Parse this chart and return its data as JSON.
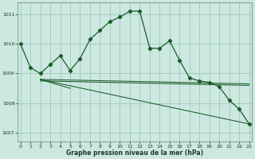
{
  "title": "Graphe pression niveau de la mer (hPa)",
  "background_color": "#cce8e0",
  "grid_color": "#88bbaa",
  "line_color": "#1a5c2a",
  "ylim": [
    1006.7,
    1011.4
  ],
  "xlim": [
    -0.3,
    23.3
  ],
  "yticks": [
    1007,
    1008,
    1009,
    1010,
    1011
  ],
  "xticks": [
    0,
    1,
    2,
    3,
    4,
    5,
    6,
    7,
    8,
    9,
    10,
    11,
    12,
    13,
    14,
    15,
    16,
    17,
    18,
    19,
    20,
    21,
    22,
    23
  ],
  "series_main": {
    "x": [
      0,
      1,
      2,
      3,
      4,
      5,
      6,
      7,
      8,
      9,
      10,
      11,
      12,
      13,
      14,
      15,
      16,
      17,
      18,
      19,
      20,
      21,
      22,
      23
    ],
    "y": [
      1010.0,
      1009.2,
      1009.0,
      1009.3,
      1009.6,
      1009.1,
      1009.5,
      1010.15,
      1010.45,
      1010.75,
      1010.9,
      1011.1,
      1011.1,
      1009.85,
      1009.85,
      1010.1,
      1009.45,
      1008.85,
      1008.75,
      1008.7,
      1008.55,
      1008.1,
      1007.8,
      1007.3
    ]
  },
  "series_flat1": {
    "x": [
      2,
      23
    ],
    "y": [
      1008.8,
      1008.65
    ]
  },
  "series_flat2": {
    "x": [
      2,
      23
    ],
    "y": [
      1008.75,
      1008.6
    ]
  },
  "series_diagonal": {
    "x": [
      2,
      23
    ],
    "y": [
      1008.8,
      1007.3
    ]
  },
  "series_short": {
    "x": [
      2,
      5
    ],
    "y": [
      1008.8,
      1008.5
    ]
  }
}
